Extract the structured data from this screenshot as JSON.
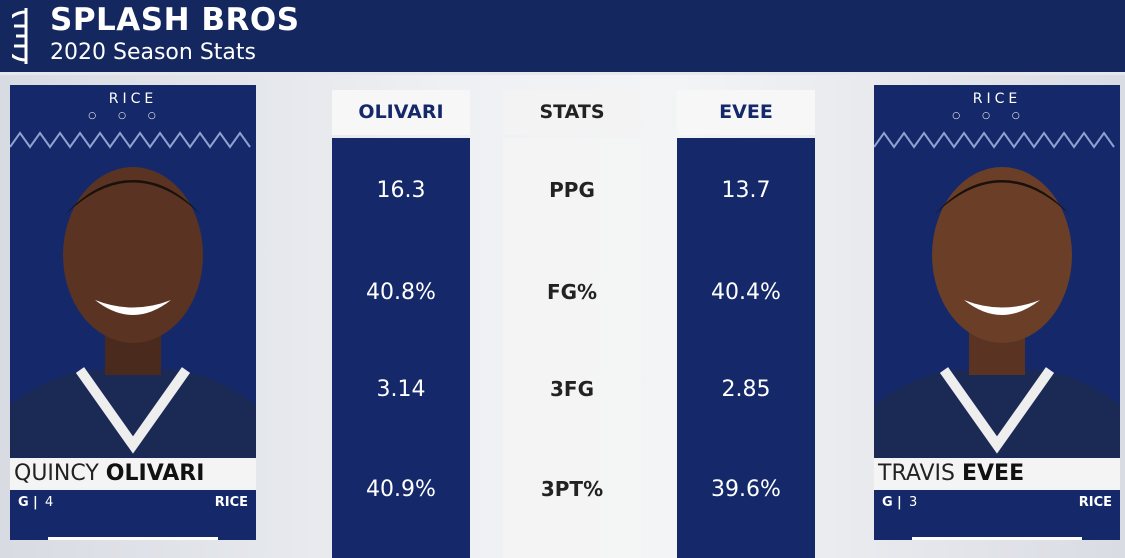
{
  "header": {
    "title": "SPLASH BROS",
    "subtitle": "2020 Season Stats"
  },
  "players": [
    {
      "school": "RICE",
      "first_name": "QUINCY",
      "last_name": "OLIVARI",
      "position": "G",
      "number": "4",
      "team": "RICE"
    },
    {
      "school": "RICE",
      "first_name": "TRAVIS",
      "last_name": "EVEE",
      "position": "G",
      "number": "3",
      "team": "RICE"
    }
  ],
  "table": {
    "columns": [
      "OLIVARI",
      "STATS",
      "EVEE"
    ],
    "rows": [
      [
        "16.3",
        "PPG",
        "13.7"
      ],
      [
        "40.8%",
        "FG%",
        "40.4%"
      ],
      [
        "3.14",
        "3FG",
        "2.85"
      ],
      [
        "40.9%",
        "3PT%",
        "39.6%"
      ]
    ]
  }
}
